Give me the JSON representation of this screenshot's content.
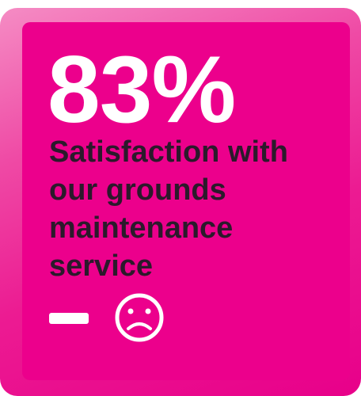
{
  "stat": "83%",
  "label": "Satisfaction with our grounds maintenance service"
}
